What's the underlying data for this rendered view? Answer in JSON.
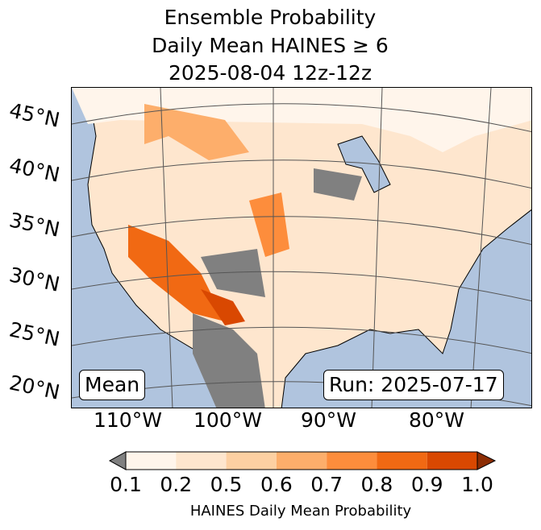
{
  "title": {
    "line1": "Ensemble Probability",
    "line2": "Daily Mean HAINES ≥ 6",
    "line3": "2025-08-04 12z-12z"
  },
  "map": {
    "lat_labels": [
      "45°N",
      "40°N",
      "35°N",
      "30°N",
      "25°N",
      "20°N"
    ],
    "lon_labels": [
      "110°W",
      "100°W",
      "90°W",
      "80°W"
    ],
    "stat_label": "Mean",
    "run_label": "Run: 2025-07-17",
    "colors": {
      "ocean": "#b0c4de",
      "below": "#808080",
      "land": "#fff5eb"
    }
  },
  "colorbar": {
    "ticks": [
      "0.1",
      "0.2",
      "0.5",
      "0.6",
      "0.7",
      "0.8",
      "0.9",
      "1.0"
    ],
    "colors": [
      "#fff5eb",
      "#fee6ce",
      "#fdd0a2",
      "#fdae6b",
      "#fd8d3c",
      "#f16913",
      "#d94801"
    ],
    "under_color": "#808080",
    "over_color": "#8c2d04",
    "label": "HAINES Daily Mean Probability"
  }
}
